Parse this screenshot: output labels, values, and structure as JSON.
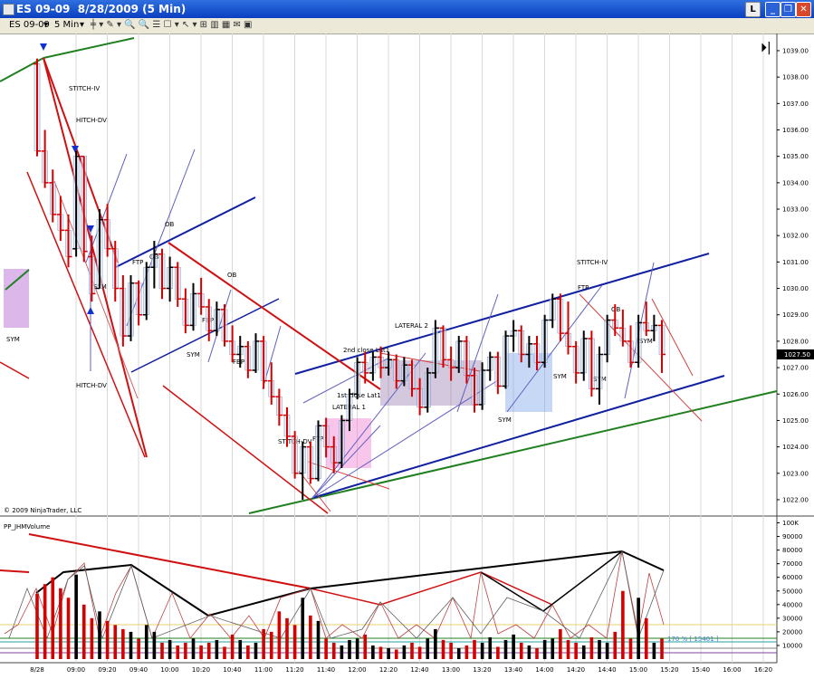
{
  "window": {
    "title": "ES 09-09  8/28/2009 (5 Min)",
    "instrument": "ES 09-09",
    "interval": "5 Min",
    "button": "L"
  },
  "copyright": "© 2009 NinjaTrader, LLC",
  "chart_data": [
    {
      "type": "ohlc",
      "up_color": "#000000",
      "down_color": "#d40000",
      "open": [
        1038.5,
        1035.2,
        1034.0,
        1032.8,
        1032.2,
        1031.5,
        1035.0,
        1031.2,
        1030.0,
        1032.6,
        1031.5,
        1030.0,
        1028.2,
        1030.2,
        1029.0,
        1030.8,
        1031.3,
        1030.0,
        1030.8,
        1029.6,
        1028.6,
        1029.8,
        1029.3,
        1028.4,
        1029.2,
        1028.0,
        1027.5,
        1027.8,
        1026.9,
        1028.0,
        1026.5,
        1025.9,
        1025.2,
        1024.4,
        1023.0,
        1024.0,
        1022.8,
        1024.8,
        1024.0,
        1023.4,
        1025.0,
        1026.0,
        1027.2,
        1026.8,
        1027.4,
        1027.0,
        1027.3,
        1026.5,
        1027.1,
        1026.2,
        1025.5,
        1026.8,
        1028.5,
        1027.3,
        1027.0,
        1028.0,
        1026.7,
        1025.6,
        1026.9,
        1027.4,
        1026.3,
        1028.2,
        1028.4,
        1027.5,
        1027.9,
        1027.2,
        1028.8,
        1029.6,
        1028.3,
        1027.8,
        1026.8,
        1028.1,
        1026.2,
        1027.5,
        1028.8,
        1028.5,
        1028.0,
        1027.2,
        1028.7,
        1028.4,
        1028.6
      ],
      "high": [
        1038.7,
        1036.0,
        1034.5,
        1033.5,
        1032.8,
        1035.2,
        1035.0,
        1032.0,
        1033.0,
        1033.2,
        1031.8,
        1030.5,
        1030.5,
        1030.3,
        1031.0,
        1031.8,
        1031.5,
        1031.2,
        1031.0,
        1030.0,
        1030.2,
        1030.4,
        1029.6,
        1029.5,
        1029.4,
        1028.6,
        1028.2,
        1028.0,
        1028.3,
        1028.2,
        1027.2,
        1026.2,
        1025.5,
        1024.6,
        1024.2,
        1024.2,
        1025.0,
        1025.1,
        1024.4,
        1025.2,
        1026.2,
        1027.4,
        1027.6,
        1027.6,
        1027.8,
        1027.6,
        1027.5,
        1027.4,
        1027.3,
        1026.6,
        1027.0,
        1028.8,
        1028.6,
        1027.8,
        1028.2,
        1028.2,
        1027.0,
        1027.2,
        1027.6,
        1027.6,
        1028.4,
        1028.8,
        1028.6,
        1028.2,
        1028.2,
        1029.0,
        1029.8,
        1029.8,
        1029.5,
        1028.0,
        1028.4,
        1028.4,
        1027.8,
        1029.0,
        1029.4,
        1029.2,
        1028.6,
        1029.0,
        1029.5,
        1029.0,
        1028.8
      ],
      "low": [
        1035.0,
        1033.8,
        1032.5,
        1031.8,
        1030.8,
        1031.2,
        1031.0,
        1029.5,
        1030.0,
        1031.2,
        1029.5,
        1027.8,
        1028.0,
        1028.6,
        1028.8,
        1030.0,
        1029.6,
        1029.5,
        1029.3,
        1028.3,
        1028.4,
        1029.0,
        1028.0,
        1028.2,
        1027.8,
        1027.2,
        1027.0,
        1026.6,
        1026.8,
        1026.2,
        1025.6,
        1024.8,
        1024.0,
        1022.8,
        1022.0,
        1022.6,
        1022.7,
        1023.6,
        1023.0,
        1023.2,
        1024.6,
        1025.8,
        1026.4,
        1026.5,
        1026.6,
        1026.7,
        1026.2,
        1026.3,
        1025.9,
        1025.2,
        1025.3,
        1026.6,
        1027.0,
        1026.5,
        1026.8,
        1026.4,
        1025.3,
        1025.4,
        1026.5,
        1026.0,
        1026.2,
        1027.6,
        1027.2,
        1027.0,
        1026.9,
        1027.0,
        1028.5,
        1028.0,
        1027.5,
        1026.4,
        1026.5,
        1025.9,
        1025.6,
        1027.2,
        1028.2,
        1027.8,
        1027.0,
        1027.0,
        1028.2,
        1028.0,
        1026.8
      ],
      "close": [
        1035.2,
        1034.0,
        1032.8,
        1032.2,
        1031.2,
        1035.0,
        1031.4,
        1029.8,
        1032.6,
        1031.5,
        1030.0,
        1028.2,
        1030.2,
        1029.0,
        1030.8,
        1031.3,
        1030.0,
        1030.8,
        1029.6,
        1028.6,
        1029.8,
        1029.3,
        1028.4,
        1029.2,
        1028.0,
        1027.5,
        1027.8,
        1026.9,
        1028.0,
        1026.5,
        1025.9,
        1025.2,
        1024.4,
        1023.0,
        1024.0,
        1022.8,
        1024.8,
        1024.0,
        1023.4,
        1025.0,
        1026.0,
        1027.2,
        1026.8,
        1027.4,
        1027.0,
        1027.3,
        1026.5,
        1027.1,
        1026.2,
        1025.5,
        1026.8,
        1028.5,
        1027.3,
        1027.0,
        1028.0,
        1026.7,
        1025.6,
        1026.9,
        1027.4,
        1026.3,
        1028.2,
        1028.4,
        1027.5,
        1027.9,
        1027.2,
        1028.8,
        1029.6,
        1028.3,
        1027.8,
        1026.8,
        1028.1,
        1026.2,
        1027.5,
        1028.8,
        1028.5,
        1028.0,
        1027.2,
        1028.7,
        1028.4,
        1028.6,
        1027.5
      ],
      "last_price": 1027.5,
      "last_price_label": "1027.50",
      "ylim": [
        1021.45,
        1039.65
      ],
      "yticks": [
        {
          "value": 1022,
          "label": "1022.00"
        },
        {
          "value": 1023,
          "label": "1023.00"
        },
        {
          "value": 1024,
          "label": "1024.00"
        },
        {
          "value": 1025,
          "label": "1025.00"
        },
        {
          "value": 1026,
          "label": "1026.00"
        },
        {
          "value": 1027,
          "label": "1027.00"
        },
        {
          "value": 1028,
          "label": "1028.00"
        },
        {
          "value": 1029,
          "label": "1029.00"
        },
        {
          "value": 1030,
          "label": "1030.00"
        },
        {
          "value": 1031,
          "label": "1031.00"
        },
        {
          "value": 1032,
          "label": "1032.00"
        },
        {
          "value": 1033,
          "label": "1033.00"
        },
        {
          "value": 1034,
          "label": "1034.00"
        },
        {
          "value": 1035,
          "label": "1035.00"
        },
        {
          "value": 1036,
          "label": "1036.00"
        },
        {
          "value": 1037,
          "label": "1037.00"
        },
        {
          "value": 1038,
          "label": "1038.00"
        },
        {
          "value": 1039,
          "label": "1039.00"
        }
      ],
      "annotations": [
        "STITCH-IV",
        "HITCH-DV",
        "HITCH-DV",
        "OB",
        "FTP",
        "OB",
        "SYM",
        "FBP",
        "SYM",
        "OB",
        "FBP",
        "SYM",
        "STITCH-DV",
        "FTP",
        "LATERAL 1",
        "1st close Lat1",
        "2nd close Lat1",
        "LATERAL 2",
        "SYM",
        "SYM",
        "SYM",
        "STITCH-IV",
        "FTP",
        "OB",
        "SYM"
      ]
    },
    {
      "type": "bar",
      "title": "PP_JHMVolume",
      "annotation": "170 % [ 15401 ]",
      "values": [
        48000,
        55000,
        60000,
        52000,
        45000,
        62000,
        40000,
        30000,
        35000,
        28000,
        25000,
        22000,
        20000,
        15000,
        25000,
        20000,
        12000,
        14000,
        10000,
        12000,
        15000,
        10000,
        12000,
        14000,
        9000,
        18000,
        14000,
        10000,
        12000,
        22000,
        20000,
        35000,
        30000,
        25000,
        45000,
        32000,
        28000,
        15000,
        12000,
        10000,
        14000,
        15000,
        18000,
        10000,
        9000,
        8000,
        7000,
        10000,
        12000,
        9000,
        15000,
        22000,
        14000,
        12000,
        8000,
        10000,
        14000,
        12000,
        16000,
        9000,
        14000,
        18000,
        12000,
        10000,
        8000,
        14000,
        15000,
        22000,
        14000,
        12000,
        10000,
        16000,
        14000,
        12000,
        20000,
        50000,
        15000,
        45000,
        30000,
        12000,
        15000
      ],
      "ylim": [
        0,
        103000
      ],
      "yticks": [
        10000,
        20000,
        30000,
        40000,
        50000,
        60000,
        70000,
        80000,
        90000,
        {
          "value": 100000,
          "label": "100K"
        }
      ],
      "x_axis_labels": [
        "8/28",
        "09:00",
        "09:20",
        "09:40",
        "10:00",
        "10:20",
        "10:40",
        "11:00",
        "11:20",
        "11:40",
        "12:00",
        "12:20",
        "12:40",
        "13:00",
        "13:20",
        "13:40",
        "14:00",
        "14:20",
        "14:40",
        "15:00",
        "15:20",
        "15:40",
        "16:00",
        "16:20"
      ]
    }
  ]
}
